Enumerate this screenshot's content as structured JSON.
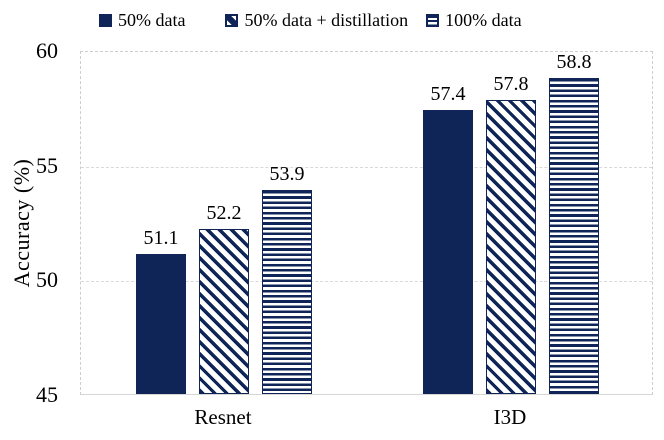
{
  "chart_data": {
    "type": "bar",
    "categories": [
      "Resnet",
      "I3D"
    ],
    "series": [
      {
        "name": "50% data",
        "pattern": "solid",
        "values": [
          51.1,
          57.4
        ]
      },
      {
        "name": "50% data + distillation",
        "pattern": "diagonal-hatch",
        "values": [
          52.2,
          57.8
        ]
      },
      {
        "name": "100% data",
        "pattern": "horizontal-hatch",
        "values": [
          53.9,
          58.8
        ]
      }
    ],
    "ylabel": "Accuracy (%)",
    "xlabel": "",
    "ylim": [
      45,
      60
    ],
    "yticks": [
      45,
      50,
      55,
      60
    ],
    "grid": "dashed horizontal gridlines",
    "legend_position": "top",
    "value_labels": true,
    "colors": {
      "bar_navy": "#0f2557",
      "grid_gray": "#d9d9d9",
      "axis_gray": "#d6d6d6",
      "text": "#000000",
      "background": "#ffffff"
    }
  }
}
